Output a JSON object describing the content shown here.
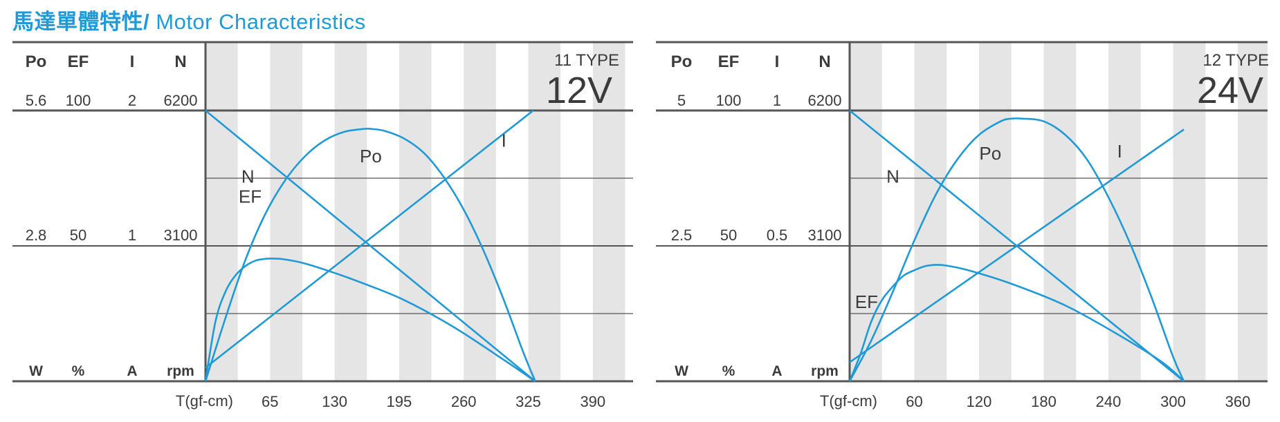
{
  "page": {
    "title_zh": "馬達單體特性/",
    "title_en": "Motor Characteristics"
  },
  "colors": {
    "curve": "#1f9ad6",
    "stripe": "#e5e5e5",
    "grid": "#555555",
    "text": "#3b3b3b",
    "title": "#1f9ad6"
  },
  "chart_data": [
    {
      "type": "line",
      "model": "11 TYPE",
      "voltage": "12V",
      "xlabel": "T(gf-cm)",
      "xticks": [
        65,
        130,
        195,
        260,
        325,
        390
      ],
      "xlim": [
        0,
        390
      ],
      "axes": [
        {
          "header": "Po",
          "unit": "W",
          "top": "5.6",
          "mid": "2.8",
          "max": 5.6
        },
        {
          "header": "EF",
          "unit": "%",
          "top": "100",
          "mid": "50",
          "max": 100
        },
        {
          "header": "I",
          "unit": "A",
          "top": "2",
          "mid": "1",
          "max": 2
        },
        {
          "header": "N",
          "unit": "rpm",
          "top": "6200",
          "mid": "3100",
          "max": 6200
        }
      ],
      "series": [
        {
          "name": "N",
          "axis": 3,
          "x": [
            0,
            332
          ],
          "y": [
            6200,
            0
          ],
          "label_at": [
            48,
            4800
          ]
        },
        {
          "name": "I",
          "axis": 2,
          "x": [
            0,
            330
          ],
          "y": [
            0.1,
            2.0
          ],
          "label_at": [
            300,
            1.82
          ]
        },
        {
          "name": "Po",
          "axis": 0,
          "x": [
            0,
            20,
            40,
            60,
            80,
            100,
            120,
            140,
            160,
            166,
            180,
            200,
            220,
            240,
            260,
            280,
            300,
            320,
            332
          ],
          "y": [
            0,
            1.3,
            2.5,
            3.45,
            4.15,
            4.65,
            4.98,
            5.16,
            5.22,
            5.22,
            5.18,
            5.02,
            4.72,
            4.22,
            3.55,
            2.7,
            1.7,
            0.6,
            0
          ],
          "label_at": [
            170,
            4.7
          ]
        },
        {
          "name": "EF",
          "axis": 1,
          "x": [
            0,
            10,
            20,
            30,
            40,
            50,
            60,
            70,
            80,
            100,
            130,
            160,
            200,
            250,
            300,
            332
          ],
          "y": [
            0,
            22,
            33,
            39,
            42.5,
            44.5,
            45.2,
            45.3,
            45,
            43.5,
            40,
            36,
            30,
            20,
            8,
            0
          ],
          "label_at": [
            48,
            67
          ]
        }
      ]
    },
    {
      "type": "line",
      "model": "12 TYPE",
      "voltage": "24V",
      "xlabel": "T(gf-cm)",
      "xticks": [
        60,
        120,
        180,
        240,
        300,
        360
      ],
      "xlim": [
        0,
        360
      ],
      "axes": [
        {
          "header": "Po",
          "unit": "W",
          "top": "5",
          "mid": "2.5",
          "max": 5
        },
        {
          "header": "EF",
          "unit": "%",
          "top": "100",
          "mid": "50",
          "max": 100
        },
        {
          "header": "I",
          "unit": "A",
          "top": "1",
          "mid": "0.5",
          "max": 1
        },
        {
          "header": "N",
          "unit": "rpm",
          "top": "6200",
          "mid": "3100",
          "max": 6200
        }
      ],
      "series": [
        {
          "name": "N",
          "axis": 3,
          "x": [
            0,
            310
          ],
          "y": [
            6200,
            0
          ],
          "label_at": [
            45,
            4800
          ]
        },
        {
          "name": "I",
          "axis": 2,
          "x": [
            0,
            310
          ],
          "y": [
            0.07,
            0.93
          ],
          "label_at": [
            250,
            0.87
          ]
        },
        {
          "name": "Po",
          "axis": 0,
          "x": [
            0,
            20,
            40,
            60,
            80,
            100,
            120,
            140,
            150,
            160,
            180,
            200,
            220,
            240,
            260,
            280,
            300,
            310
          ],
          "y": [
            0,
            0.75,
            1.65,
            2.6,
            3.45,
            4.1,
            4.55,
            4.8,
            4.85,
            4.85,
            4.8,
            4.55,
            4.1,
            3.4,
            2.55,
            1.55,
            0.45,
            0
          ],
          "label_at": [
            135,
            4.25
          ]
        },
        {
          "name": "EF",
          "axis": 1,
          "x": [
            0,
            10,
            20,
            30,
            40,
            50,
            60,
            70,
            80,
            90,
            110,
            150,
            200,
            250,
            290,
            310
          ],
          "y": [
            0,
            10,
            22,
            30,
            35,
            39,
            41,
            42.5,
            43,
            42.7,
            41,
            36,
            28,
            17,
            7,
            0
          ],
          "label_at": [
            5,
            28
          ]
        }
      ]
    }
  ]
}
